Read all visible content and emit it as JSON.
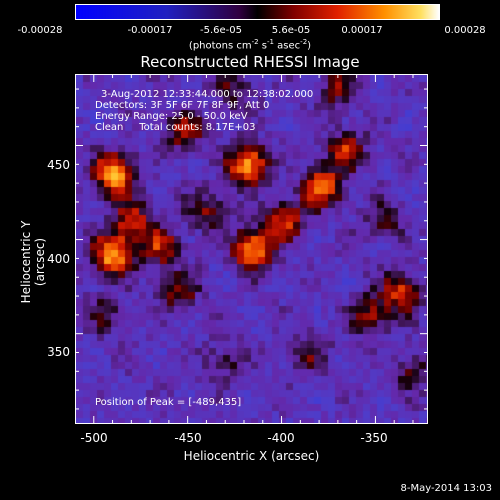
{
  "chart_data": {
    "type": "heatmap",
    "title": "Reconstructed RHESSI Image",
    "xlabel": "Heliocentric X (arcsec)",
    "ylabel": "Heliocentric Y (arcsec)",
    "xlim": [
      -510,
      -322
    ],
    "ylim": [
      302,
      488
    ],
    "x_ticks": [
      "-500",
      "-450",
      "-400",
      "-350"
    ],
    "y_ticks": [
      "350",
      "400",
      "450"
    ],
    "colorbar": {
      "ticks": [
        "-0.00028",
        "-0.00017",
        "-5.6e-05",
        "5.6e-05",
        "0.00017",
        "0.00028"
      ],
      "units_text": "(photons cm",
      "units_exp1": "-2",
      "units_mid1": " s",
      "units_exp2": "-1",
      "units_mid2": " asec",
      "units_exp3": "-2",
      "units_end": ")"
    },
    "annotations": {
      "time": "3-Aug-2012 12:33:44.000 to 12:38:02.000",
      "detectors": "Detectors: 3F 5F 6F 7F 8F 9F, Att 0",
      "energy": "Energy Range: 25.0 - 50.0 keV",
      "clean": "Clean     Total counts: 8.17E+03",
      "peak": "Position of Peak = [-489,435]"
    },
    "sources": [
      {
        "x": -489,
        "y": 435,
        "intensity": 1.0
      },
      {
        "x": -490,
        "y": 392,
        "intensity": 0.95
      },
      {
        "x": -480,
        "y": 410,
        "intensity": 0.6
      },
      {
        "x": -465,
        "y": 396,
        "intensity": 0.55
      },
      {
        "x": -452,
        "y": 458,
        "intensity": 0.5
      },
      {
        "x": -418,
        "y": 440,
        "intensity": 0.95
      },
      {
        "x": -415,
        "y": 395,
        "intensity": 0.9
      },
      {
        "x": -398,
        "y": 410,
        "intensity": 0.6
      },
      {
        "x": -378,
        "y": 428,
        "intensity": 0.8
      },
      {
        "x": -365,
        "y": 448,
        "intensity": 0.55
      },
      {
        "x": -352,
        "y": 360,
        "intensity": 0.5
      },
      {
        "x": -335,
        "y": 372,
        "intensity": 0.65
      },
      {
        "x": -455,
        "y": 372,
        "intensity": 0.45
      },
      {
        "x": -440,
        "y": 415,
        "intensity": 0.45
      },
      {
        "x": -370,
        "y": 480,
        "intensity": 0.4
      },
      {
        "x": -425,
        "y": 480,
        "intensity": 0.35
      },
      {
        "x": -495,
        "y": 360,
        "intensity": 0.3
      },
      {
        "x": -330,
        "y": 330,
        "intensity": 0.35
      },
      {
        "x": -345,
        "y": 410,
        "intensity": 0.35
      },
      {
        "x": -430,
        "y": 335,
        "intensity": 0.3
      },
      {
        "x": -385,
        "y": 340,
        "intensity": 0.35
      }
    ]
  },
  "footer": {
    "date": "8-May-2014 13:03"
  }
}
